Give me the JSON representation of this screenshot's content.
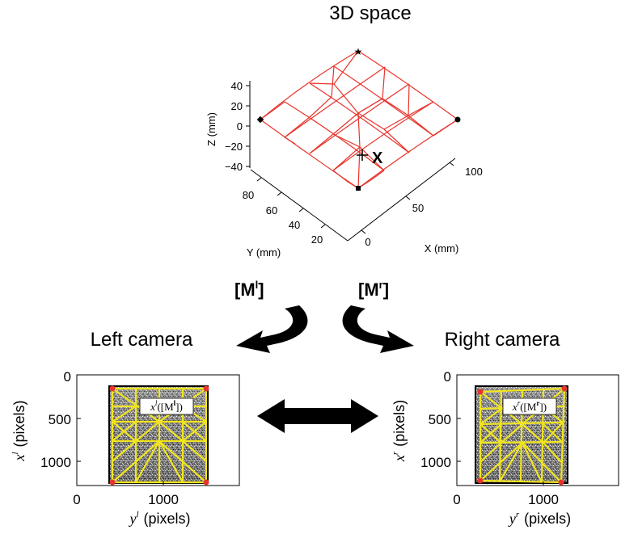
{
  "space": {
    "title": "3D space",
    "z_label": "Z (mm)",
    "z_ticks": [
      "40",
      "20",
      "0",
      "−20",
      "−40"
    ],
    "y_label": "Y (mm)",
    "y_ticks": [
      "80",
      "60",
      "40",
      "20"
    ],
    "x_label": "X (mm)",
    "x_ticks": [
      "0",
      "50",
      "100"
    ],
    "point_label": "X",
    "mesh_color": "#e8332a"
  },
  "projections": {
    "left_matrix": {
      "open": "[M",
      "sup": "l",
      "close": "]"
    },
    "right_matrix": {
      "open": "[M",
      "sup": "r",
      "close": "]"
    }
  },
  "left_camera": {
    "title": "Left camera",
    "y_ticks": [
      "0",
      "500",
      "1000"
    ],
    "x_ticks": [
      "0",
      "1000"
    ],
    "ylabel_var": "x",
    "ylabel_sup": "l",
    "ylabel_unit": "(pixels)",
    "xlabel_var": "y",
    "xlabel_sup": "l",
    "xlabel_unit": "(pixels)",
    "box_var": "x",
    "box_sup": "l",
    "box_open": "([M",
    "box_msup": "l",
    "box_close": "])"
  },
  "right_camera": {
    "title": "Right camera",
    "y_ticks": [
      "0",
      "500",
      "1000"
    ],
    "x_ticks": [
      "0",
      "1000"
    ],
    "ylabel_var": "x",
    "ylabel_sup": "r",
    "ylabel_unit": "(pixels)",
    "xlabel_var": "y",
    "xlabel_sup": "r",
    "xlabel_unit": "(pixels)",
    "box_var": "x",
    "box_sup": "r",
    "box_open": "([M",
    "box_msup": "r",
    "box_close": "])"
  },
  "colors": {
    "mesh": "#e8332a",
    "camera_mesh": "#f2e51d",
    "marker": "#e8332a",
    "arrow": "#000000"
  }
}
